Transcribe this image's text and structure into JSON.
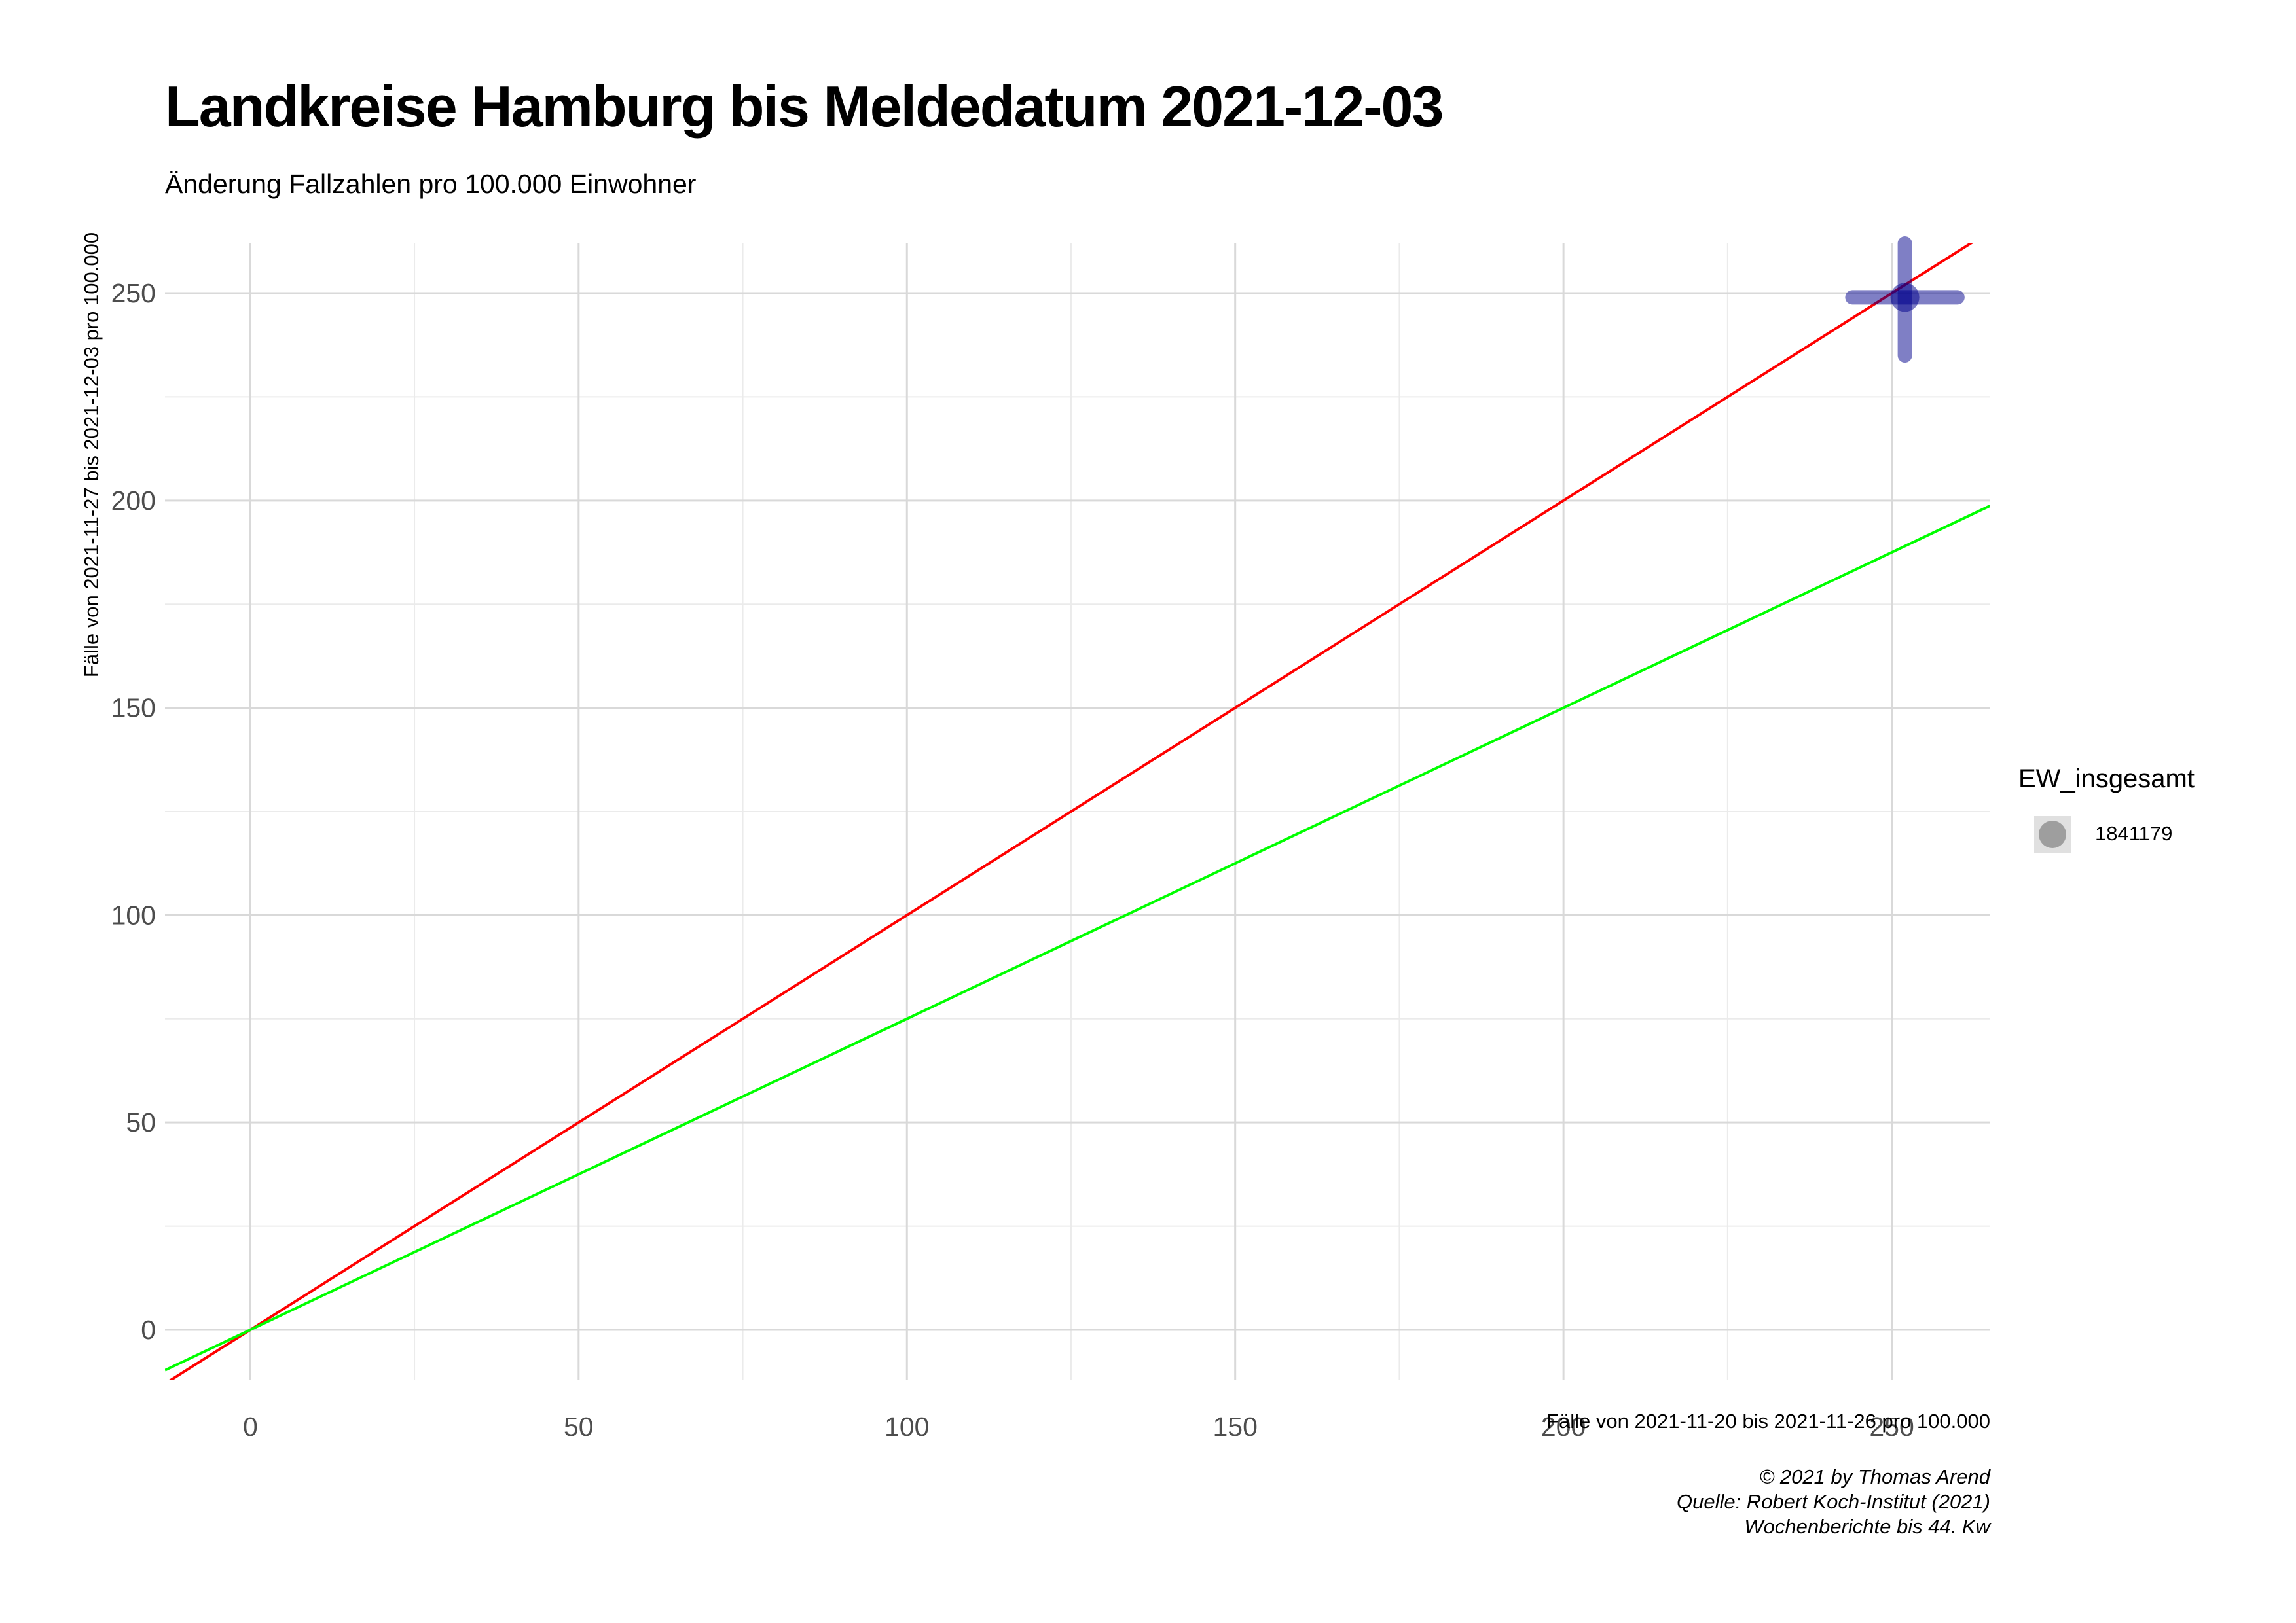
{
  "chart_data": {
    "type": "scatter",
    "title": "Landkreise Hamburg bis Meldedatum 2021-12-03",
    "subtitle": "Änderung Fallzahlen pro 100.000 Einwohner",
    "xlabel": "Fälle von 2021-11-20 bis 2021-11-26 pro 100.000",
    "ylabel": "Fälle von 2021-11-27 bis 2021-12-03 pro 100.000",
    "xlim": [
      -13,
      265
    ],
    "ylim": [
      -12,
      262
    ],
    "x_ticks": [
      0,
      50,
      100,
      150,
      200,
      250
    ],
    "y_ticks": [
      0,
      50,
      100,
      150,
      200,
      250
    ],
    "grid": true,
    "points": [
      {
        "x": 252,
        "y": 249,
        "x_err": [
          244,
          260
        ],
        "y_err": [
          235,
          262
        ],
        "EW_insgesamt": 1841179
      }
    ],
    "point_color": "#00008b",
    "reference_lines": [
      {
        "slope": 1,
        "intercept": 0,
        "color": "#ff0000"
      },
      {
        "slope": 0.75,
        "intercept": 0,
        "color": "#00ff00"
      }
    ],
    "legend": {
      "title": "EW_insgesamt",
      "entries": [
        "1841179"
      ],
      "placement": "right"
    },
    "caption": [
      "© 2021 by Thomas Arend",
      "Quelle: Robert Koch-Institut (2021)",
      "Wochenberichte bis 44. Kw"
    ]
  }
}
